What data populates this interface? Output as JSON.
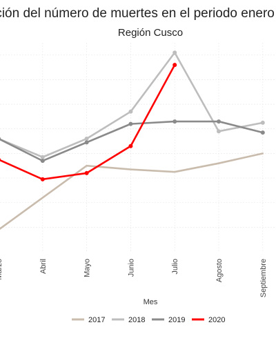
{
  "chart_data": {
    "type": "line",
    "title": "Evolución del número de muertes en el periodo enero - setiembre",
    "subtitle": "Región Cusco",
    "xlabel": "Mes",
    "ylabel": "",
    "categories": [
      "Marzo",
      "Abril",
      "Mayo",
      "Junio",
      "Julio",
      "Agosto",
      "Septiembre"
    ],
    "legend_position": "bottom",
    "grid": true,
    "series": [
      {
        "name": "2017",
        "color": "#c9bcad",
        "markers": false,
        "values": [
          19,
          32,
          45,
          43.5,
          42.5,
          46,
          50
        ]
      },
      {
        "name": "2018",
        "color": "#bdbdbd",
        "markers": true,
        "values": [
          56,
          48.5,
          56,
          67,
          91,
          59,
          62.5
        ]
      },
      {
        "name": "2019",
        "color": "#8a8a8a",
        "markers": true,
        "values": [
          56,
          47,
          54.5,
          62,
          63,
          63,
          58.5
        ]
      },
      {
        "name": "2020",
        "color": "#ff0000",
        "markers": true,
        "values": [
          47.5,
          39.5,
          42,
          53,
          86,
          null,
          null
        ]
      }
    ]
  }
}
